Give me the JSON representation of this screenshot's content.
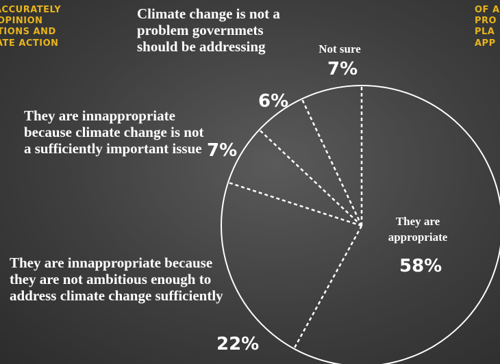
{
  "background_text": {
    "left": [
      "ACCURATELY",
      "OPINION",
      "TIONS AND",
      "ATE ACTION"
    ],
    "right": [
      "OF A",
      "PRO",
      "PLA",
      "APP"
    ]
  },
  "chart_data": {
    "type": "pie",
    "categories": [
      "Not sure",
      "Climate change is not a problem governmets should be addressing",
      "They are innappropriate because climate change is not a sufficiently important issue",
      "They are innappropriate because they are not ambitious enough to address climate change sufficiently",
      "They are appropriate"
    ],
    "values": [
      7,
      6,
      7,
      22,
      58
    ],
    "value_labels": [
      "7%",
      "6%",
      "7%",
      "22%",
      "58%"
    ],
    "color": "#ffffff"
  }
}
